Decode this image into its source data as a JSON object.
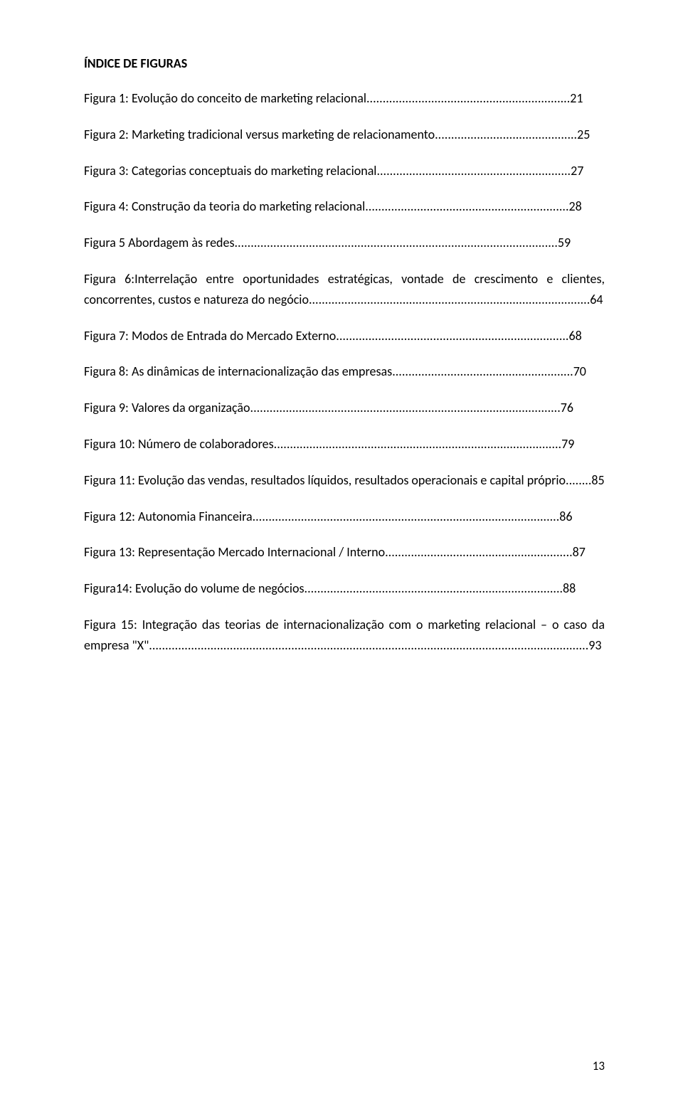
{
  "title": "ÍNDICE DE FIGURAS",
  "entries": [
    {
      "label": "Figura 1: Evolução do conceito de marketing relacional",
      "page": "21"
    },
    {
      "label": "Figura 2: Marketing tradicional versus marketing de relacionamento",
      "page": "25"
    },
    {
      "label": "Figura 3: Categorias conceptuais do marketing relacional",
      "page": "27"
    },
    {
      "label": "Figura 4: Construção da teoria do marketing relacional",
      "page": "28"
    },
    {
      "label": "Figura 5 Abordagem às redes",
      "page": "59"
    },
    {
      "label": "Figura 6:Interrelação entre oportunidades estratégicas, vontade de crescimento e clientes, concorrentes, custos e natureza do negócio",
      "page": "64",
      "multi": true
    },
    {
      "label": "Figura 7: Modos de Entrada do Mercado Externo",
      "page": "68"
    },
    {
      "label": "Figura 8: As dinâmicas de internacionalização das empresas",
      "page": "70"
    },
    {
      "label": "Figura 9: Valores da organização",
      "page": "76"
    },
    {
      "label": "Figura 10: Número de colaboradores",
      "page": "79"
    },
    {
      "label": "Figura 11: Evolução das vendas, resultados líquidos, resultados operacionais e capital próprio",
      "page": "85",
      "multi": true
    },
    {
      "label": "Figura 12: Autonomia Financeira",
      "page": "86"
    },
    {
      "label": "Figura 13: Representação Mercado Internacional / Interno",
      "page": "87"
    },
    {
      "label": "Figura14: Evolução do volume de negócios",
      "page": "88"
    },
    {
      "label": "Figura 15: Integração das teorias de internacionalização com o marketing relacional – o caso da empresa \"X\"",
      "page": "93",
      "multi": true
    }
  ],
  "pageNumber": "13"
}
